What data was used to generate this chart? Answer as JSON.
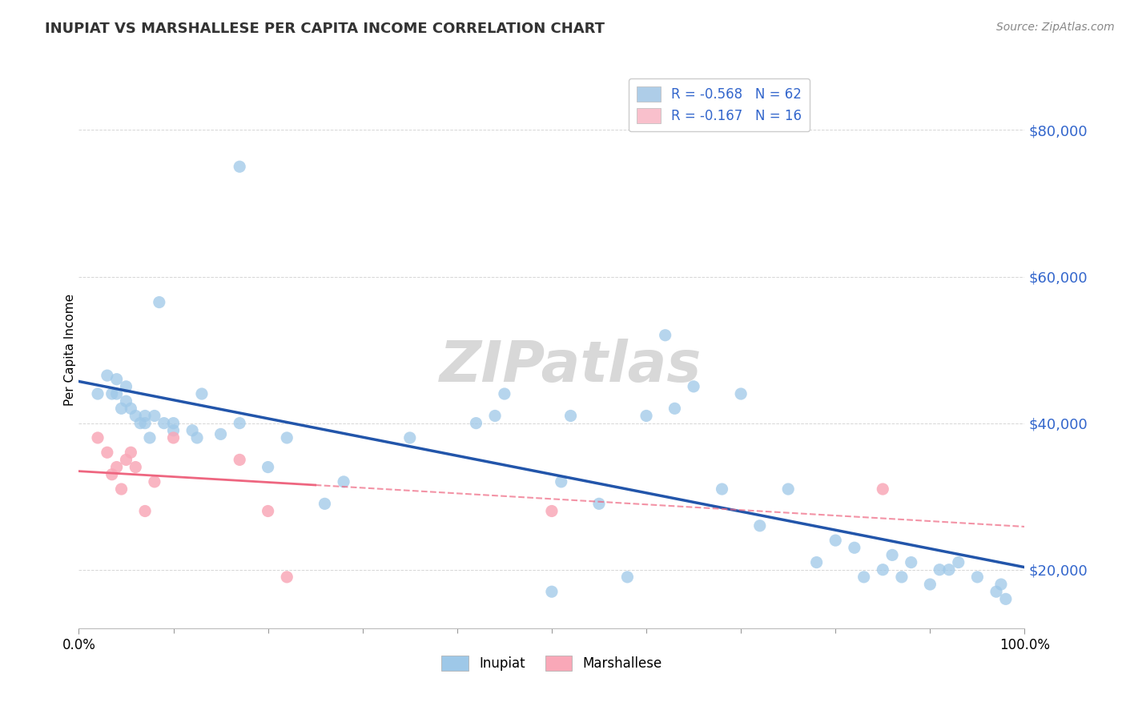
{
  "title": "INUPIAT VS MARSHALLESE PER CAPITA INCOME CORRELATION CHART",
  "source": "Source: ZipAtlas.com",
  "ylabel": "Per Capita Income",
  "xlim": [
    0,
    1
  ],
  "ylim": [
    12000,
    88000
  ],
  "yticks": [
    20000,
    40000,
    60000,
    80000
  ],
  "ytick_labels": [
    "$20,000",
    "$40,000",
    "$60,000",
    "$80,000"
  ],
  "xtick_labels": [
    "0.0%",
    "100.0%"
  ],
  "legend_entries": [
    {
      "label": "R = -0.568   N = 62",
      "color": "#aecde8"
    },
    {
      "label": "R = -0.167   N = 16",
      "color": "#f9c0cc"
    }
  ],
  "inupiat_color": "#9ec8e8",
  "marshallese_color": "#f9a8b8",
  "inupiat_line_color": "#2255aa",
  "marshallese_line_color": "#ee6680",
  "background_color": "#ffffff",
  "grid_color": "#cccccc",
  "watermark_text": "ZIPatlas",
  "watermark_color": "#d8d8d8",
  "title_color": "#333333",
  "source_color": "#888888",
  "yaxis_color": "#3366cc",
  "xaxis_tick_color": "#999999",
  "inupiat_x": [
    0.02,
    0.03,
    0.035,
    0.04,
    0.04,
    0.045,
    0.05,
    0.05,
    0.055,
    0.06,
    0.065,
    0.07,
    0.07,
    0.075,
    0.08,
    0.085,
    0.09,
    0.1,
    0.1,
    0.12,
    0.125,
    0.13,
    0.15,
    0.17,
    0.17,
    0.2,
    0.22,
    0.26,
    0.28,
    0.35,
    0.42,
    0.44,
    0.45,
    0.5,
    0.51,
    0.52,
    0.55,
    0.58,
    0.6,
    0.62,
    0.63,
    0.65,
    0.68,
    0.7,
    0.72,
    0.75,
    0.78,
    0.8,
    0.82,
    0.83,
    0.85,
    0.86,
    0.87,
    0.88,
    0.9,
    0.91,
    0.92,
    0.93,
    0.95,
    0.97,
    0.975,
    0.98
  ],
  "inupiat_y": [
    44000,
    46500,
    44000,
    46000,
    44000,
    42000,
    45000,
    43000,
    42000,
    41000,
    40000,
    41000,
    40000,
    38000,
    41000,
    56500,
    40000,
    39000,
    40000,
    39000,
    38000,
    44000,
    38500,
    75000,
    40000,
    34000,
    38000,
    29000,
    32000,
    38000,
    40000,
    41000,
    44000,
    17000,
    32000,
    41000,
    29000,
    19000,
    41000,
    52000,
    42000,
    45000,
    31000,
    44000,
    26000,
    31000,
    21000,
    24000,
    23000,
    19000,
    20000,
    22000,
    19000,
    21000,
    18000,
    20000,
    20000,
    21000,
    19000,
    17000,
    18000,
    16000
  ],
  "marshallese_x": [
    0.02,
    0.03,
    0.035,
    0.04,
    0.045,
    0.05,
    0.055,
    0.06,
    0.07,
    0.08,
    0.1,
    0.17,
    0.2,
    0.22,
    0.5,
    0.85
  ],
  "marshallese_y": [
    38000,
    36000,
    33000,
    34000,
    31000,
    35000,
    36000,
    34000,
    28000,
    32000,
    38000,
    35000,
    28000,
    19000,
    28000,
    31000
  ]
}
